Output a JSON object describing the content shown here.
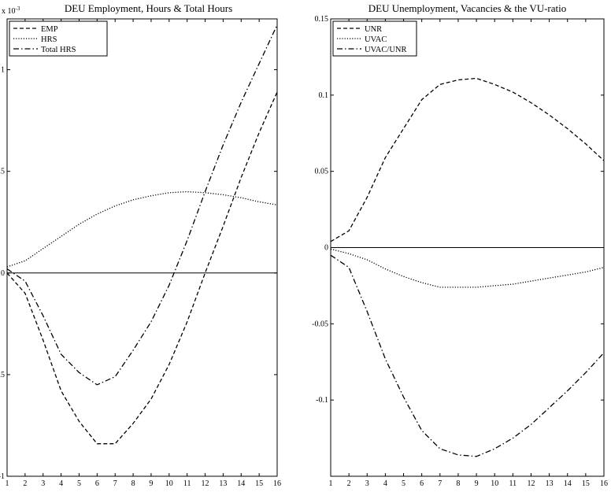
{
  "chart_data": [
    {
      "type": "line",
      "title": "DEU Employment, Hours & Total Hours",
      "scale_label": "x 10",
      "scale_exponent": "-3",
      "xlabel": "",
      "ylabel": "",
      "xlim": [
        1,
        16
      ],
      "ylim": [
        -1,
        1.25
      ],
      "x_ticks": [
        1,
        2,
        3,
        4,
        5,
        6,
        7,
        8,
        9,
        10,
        11,
        12,
        13,
        14,
        15,
        16
      ],
      "y_ticks": [
        -1,
        -0.5,
        0,
        0.5,
        1
      ],
      "y_tick_labels": [
        "-1",
        "-0.5",
        "0",
        "0.5",
        "1"
      ],
      "grid": false,
      "legend_position": "top-left",
      "zero_line": true,
      "x": [
        1,
        2,
        3,
        4,
        5,
        6,
        7,
        8,
        9,
        10,
        11,
        12,
        13,
        14,
        15,
        16
      ],
      "series": [
        {
          "name": "EMP",
          "style": "dashed",
          "values": [
            0.0,
            -0.1,
            -0.33,
            -0.58,
            -0.73,
            -0.84,
            -0.84,
            -0.74,
            -0.62,
            -0.45,
            -0.24,
            0.0,
            0.23,
            0.47,
            0.69,
            0.89
          ]
        },
        {
          "name": "HRS",
          "style": "dotted",
          "values": [
            0.03,
            0.06,
            0.12,
            0.18,
            0.24,
            0.29,
            0.33,
            0.36,
            0.38,
            0.395,
            0.4,
            0.395,
            0.385,
            0.37,
            0.35,
            0.335
          ]
        },
        {
          "name": "Total HRS",
          "style": "dashdot",
          "values": [
            0.02,
            -0.04,
            -0.21,
            -0.4,
            -0.49,
            -0.55,
            -0.51,
            -0.38,
            -0.24,
            -0.06,
            0.16,
            0.4,
            0.63,
            0.84,
            1.03,
            1.22
          ]
        }
      ]
    },
    {
      "type": "line",
      "title": "DEU Unemployment, Vacancies & the VU-ratio",
      "xlabel": "",
      "ylabel": "",
      "xlim": [
        1,
        16
      ],
      "ylim": [
        -0.15,
        0.15
      ],
      "x_ticks": [
        1,
        2,
        3,
        4,
        5,
        6,
        7,
        8,
        9,
        10,
        11,
        12,
        13,
        14,
        15,
        16
      ],
      "y_ticks": [
        -0.1,
        -0.05,
        0,
        0.05,
        0.1,
        0.15
      ],
      "y_tick_labels": [
        "-0.1",
        "-0.05",
        "0",
        "0.05",
        "0.1",
        "0.15"
      ],
      "grid": false,
      "legend_position": "top-left",
      "zero_line": true,
      "x": [
        1,
        2,
        3,
        4,
        5,
        6,
        7,
        8,
        9,
        10,
        11,
        12,
        13,
        14,
        15,
        16
      ],
      "series": [
        {
          "name": "UNR",
          "style": "dashed",
          "values": [
            0.004,
            0.011,
            0.033,
            0.059,
            0.078,
            0.097,
            0.107,
            0.11,
            0.111,
            0.107,
            0.102,
            0.095,
            0.087,
            0.078,
            0.068,
            0.057
          ]
        },
        {
          "name": "UVAC",
          "style": "dotted",
          "values": [
            -0.001,
            -0.004,
            -0.008,
            -0.014,
            -0.019,
            -0.023,
            -0.026,
            -0.026,
            -0.026,
            -0.025,
            -0.024,
            -0.022,
            -0.02,
            -0.018,
            -0.016,
            -0.013
          ]
        },
        {
          "name": "UVAC/UNR",
          "style": "dashdot",
          "values": [
            -0.005,
            -0.013,
            -0.042,
            -0.073,
            -0.098,
            -0.12,
            -0.132,
            -0.136,
            -0.137,
            -0.132,
            -0.125,
            -0.116,
            -0.105,
            -0.094,
            -0.082,
            -0.069
          ]
        }
      ]
    }
  ]
}
